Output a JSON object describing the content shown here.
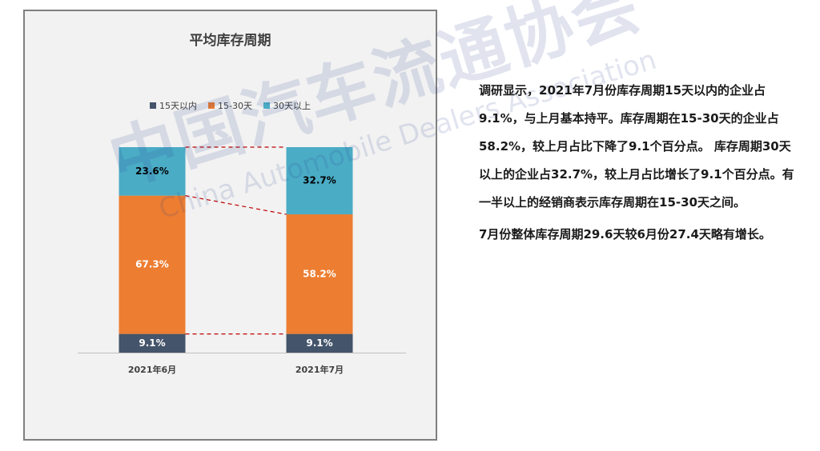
{
  "chart_data": {
    "type": "bar",
    "stacked": true,
    "normalized": true,
    "title": "平均库存周期",
    "categories": [
      "2021年6月",
      "2021年7月"
    ],
    "series": [
      {
        "name": "15天以内",
        "values": [
          9.1,
          9.1
        ],
        "labels": [
          "9.1%",
          "9.1%"
        ],
        "color": "#44546a",
        "label_color": "#ffffff"
      },
      {
        "name": "15-30天",
        "values": [
          67.3,
          58.2
        ],
        "labels": [
          "67.3%",
          "58.2%"
        ],
        "color": "#ed7d31",
        "label_color": "#ffffff"
      },
      {
        "name": "30天以上",
        "values": [
          23.6,
          32.7
        ],
        "labels": [
          "23.6%",
          "32.7%"
        ],
        "color": "#4bacc6",
        "label_color": "#000000"
      }
    ],
    "ylim": [
      0,
      100
    ],
    "legend": "top-center",
    "connector_color": "#c00000"
  },
  "watermark": {
    "cn": "中国汽车流通协会",
    "en": "China Automobile Dealers Association"
  },
  "text": {
    "para1": "调研显示，2021年7月份库存周期15天以内的企业占9.1%，与上月基本持平。库存周期在15-30天的企业占58.2%，较上月占比下降了9.1个百分点。 库存周期30天以上的企业占32.7%，较上月占比增长了9.1个百分点。有一半以上的经销商表示库存周期在15-30天之间。",
    "para2": "7月份整体库存周期29.6天较6月份27.4天略有增长。"
  }
}
